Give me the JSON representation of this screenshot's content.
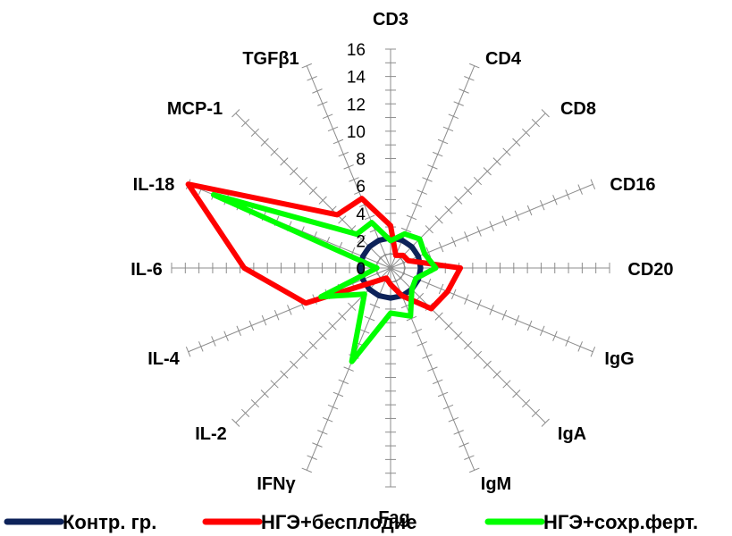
{
  "chart_data": {
    "type": "radar",
    "title": "",
    "axes": [
      "CD3",
      "CD4",
      "CD8",
      "CD16",
      "CD20",
      "IgG",
      "IgA",
      "IgM",
      "Fag",
      "IFNγ",
      "IL-2",
      "IL-4",
      "IL-6",
      "IL-18",
      "MCP-1",
      "TGFβ1"
    ],
    "rlim": [
      0,
      16
    ],
    "tick_values": [
      0,
      2,
      4,
      6,
      8,
      10,
      12,
      14,
      16
    ],
    "tick_labels": [
      "0",
      "2",
      "4",
      "6",
      "8",
      "10",
      "12",
      "14",
      "16"
    ],
    "grid": false,
    "legend_position": "bottom",
    "series": [
      {
        "name": "Контр. гр.",
        "color": "#0d2259",
        "values": [
          2.2,
          2.2,
          2.2,
          2.2,
          2.2,
          2.2,
          2.2,
          2.2,
          2.2,
          2.2,
          2.2,
          2.2,
          2.2,
          2.2,
          2.2,
          2.2
        ]
      },
      {
        "name": "НГЭ+бесплодие",
        "color": "#ff0000",
        "values": [
          3.1,
          1.0,
          1.3,
          1.4,
          5.1,
          4.5,
          4.2,
          2.2,
          1.2,
          0.8,
          1.3,
          6.7,
          10.7,
          16.0,
          5.5,
          5.5
        ]
      },
      {
        "name": "НГЭ+сохр.ферт.",
        "color": "#00ff00",
        "values": [
          2.0,
          2.7,
          3.0,
          2.7,
          3.3,
          2.0,
          2.2,
          3.8,
          3.3,
          7.4,
          2.7,
          5.5,
          1.0,
          14.0,
          3.5,
          3.6
        ]
      }
    ]
  }
}
